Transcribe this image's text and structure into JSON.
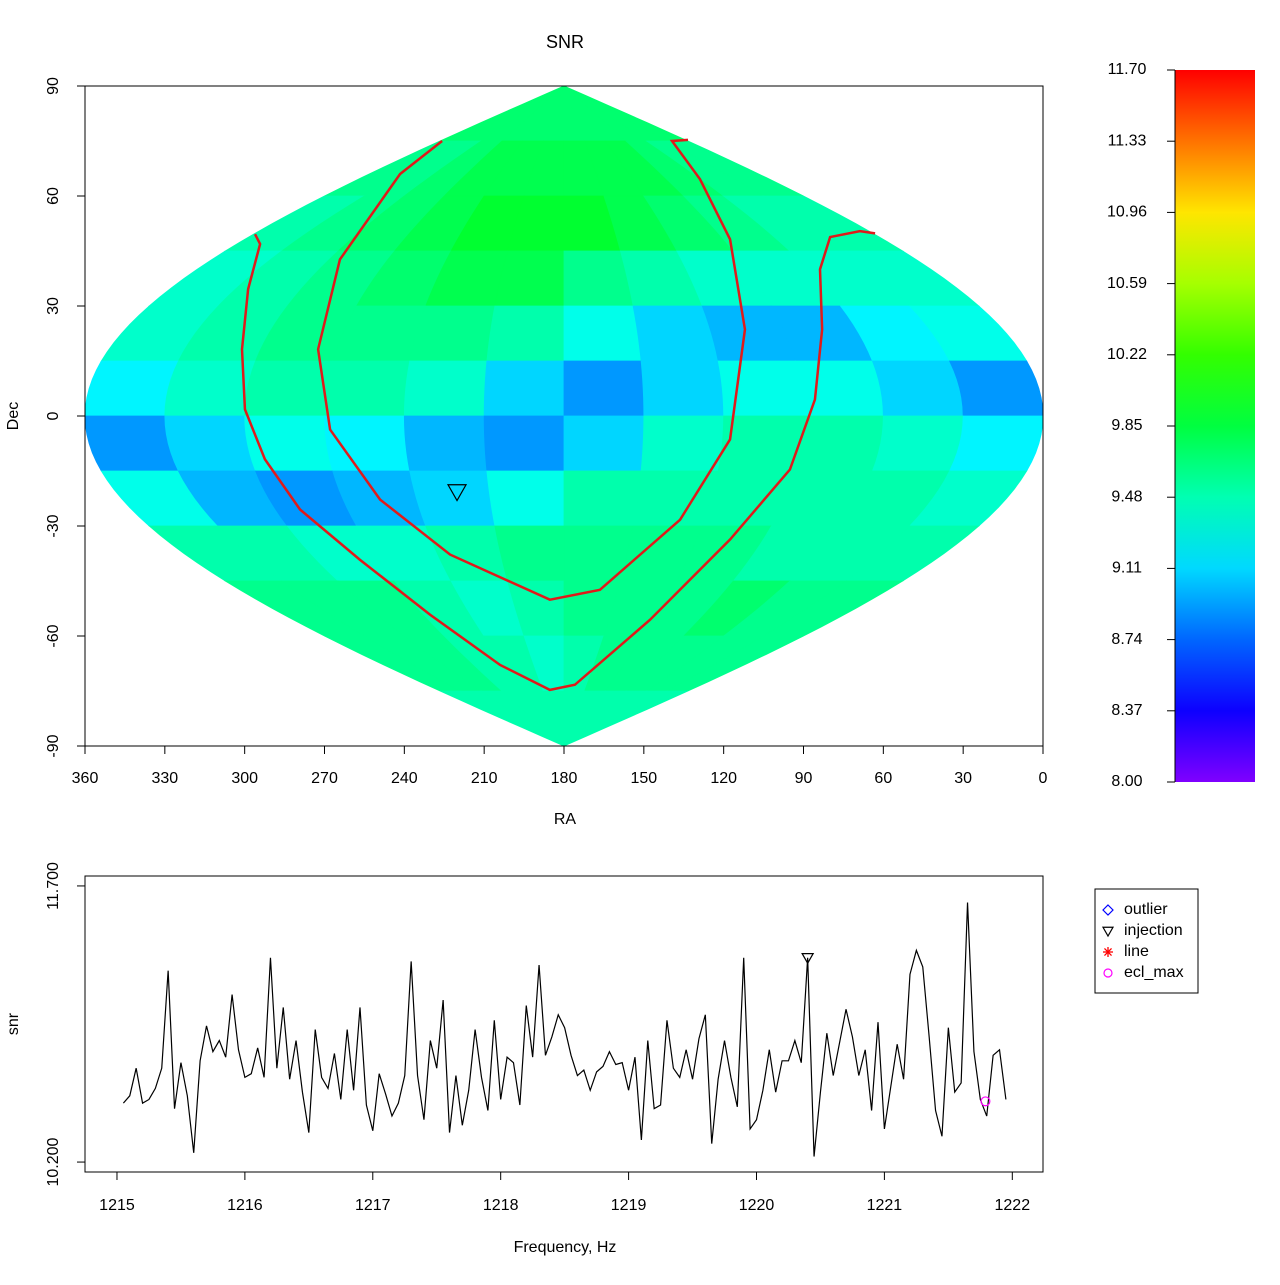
{
  "chart_data": [
    {
      "type": "heatmap",
      "title": "SNR",
      "xlabel": "RA",
      "ylabel": "Dec",
      "xlim": [
        360,
        0
      ],
      "ylim": [
        -90,
        90
      ],
      "xticks": [
        360,
        330,
        300,
        270,
        240,
        210,
        180,
        150,
        120,
        90,
        60,
        30,
        0
      ],
      "yticks": [
        -90,
        -60,
        -30,
        0,
        30,
        60,
        90
      ],
      "ra_edges": [
        360,
        330,
        300,
        270,
        240,
        210,
        180,
        150,
        120,
        90,
        60,
        30,
        0
      ],
      "dec_edges": [
        90,
        75,
        60,
        45,
        30,
        15,
        0,
        -15,
        -30,
        -45,
        -60,
        -75,
        -90
      ],
      "z": [
        [
          9.7,
          9.7,
          9.7,
          9.7,
          9.7,
          9.7,
          9.7,
          9.7,
          9.7,
          9.7,
          9.7,
          9.7
        ],
        [
          9.6,
          9.6,
          9.7,
          9.8,
          9.8,
          9.8,
          9.8,
          9.8,
          9.8,
          9.7,
          9.6,
          9.6
        ],
        [
          9.5,
          9.6,
          9.7,
          9.8,
          9.9,
          9.9,
          9.9,
          9.8,
          9.7,
          9.6,
          9.5,
          9.5
        ],
        [
          9.4,
          9.5,
          9.6,
          9.7,
          9.8,
          9.8,
          9.6,
          9.5,
          9.4,
          9.4,
          9.4,
          9.4
        ],
        [
          9.4,
          9.5,
          9.6,
          9.6,
          9.6,
          9.5,
          9.3,
          9.1,
          9.0,
          9.0,
          9.2,
          9.3
        ],
        [
          9.2,
          9.4,
          9.5,
          9.5,
          9.4,
          9.1,
          8.9,
          9.1,
          9.3,
          9.3,
          9.1,
          8.9
        ],
        [
          8.9,
          9.1,
          9.3,
          9.2,
          9.0,
          8.9,
          9.1,
          9.4,
          9.5,
          9.5,
          9.4,
          9.2
        ],
        [
          9.3,
          9.0,
          8.9,
          9.0,
          9.1,
          9.3,
          9.5,
          9.5,
          9.5,
          9.5,
          9.5,
          9.4
        ],
        [
          9.5,
          9.5,
          9.4,
          9.4,
          9.5,
          9.6,
          9.6,
          9.6,
          9.6,
          9.5,
          9.5,
          9.5
        ],
        [
          9.6,
          9.6,
          9.6,
          9.5,
          9.4,
          9.5,
          9.6,
          9.6,
          9.6,
          9.7,
          9.6,
          9.6
        ],
        [
          9.6,
          9.6,
          9.6,
          9.5,
          9.5,
          9.4,
          9.5,
          9.6,
          9.6,
          9.6,
          9.6,
          9.6
        ],
        [
          9.5,
          9.5,
          9.5,
          9.5,
          9.5,
          9.5,
          9.5,
          9.5,
          9.5,
          9.5,
          9.5,
          9.5
        ]
      ],
      "zlim": [
        8.0,
        11.7
      ],
      "zticks": [
        {
          "value": 8.0,
          "label": "8.00"
        },
        {
          "value": 8.37,
          "label": "8.37"
        },
        {
          "value": 8.74,
          "label": "8.74"
        },
        {
          "value": 9.11,
          "label": "9.11"
        },
        {
          "value": 9.48,
          "label": "9.48"
        },
        {
          "value": 9.85,
          "label": "9.85"
        },
        {
          "value": 10.22,
          "label": "10.22"
        },
        {
          "value": 10.59,
          "label": "10.59"
        },
        {
          "value": 10.96,
          "label": "10.96"
        },
        {
          "value": 11.33,
          "label": "11.33"
        },
        {
          "value": 11.7,
          "label": "11.70"
        }
      ],
      "series": [
        {
          "color": "#e01a1a",
          "x": [
            296.1,
            294.2,
            298.7,
            301.0,
            299.9,
            292.4,
            279.2,
            256.7,
            230.3,
            204.0,
            185.3,
            175.9,
            147.7,
            117.6,
            95.1,
            85.7,
            83.0,
            83.8,
            80.0,
            68.8,
            63.1
          ],
          "values": [
            49.6,
            46.9,
            34.6,
            18.2,
            1.8,
            -11.8,
            -25.5,
            -39.2,
            -54.2,
            -67.9,
            -74.7,
            -73.3,
            -55.6,
            -33.7,
            -14.6,
            4.5,
            23.6,
            40.0,
            48.8,
            50.4,
            49.8
          ]
        },
        {
          "color": "#e01a1a",
          "x": [
            225.8,
            241.6,
            264.2,
            272.4,
            267.9,
            249.1,
            222.8,
            185.3,
            166.5,
            136.4,
            117.6,
            112.0,
            117.6,
            128.9,
            139.4,
            133.4
          ],
          "values": [
            75.0,
            66.0,
            42.7,
            18.2,
            -3.7,
            -22.8,
            -37.8,
            -50.1,
            -47.4,
            -28.3,
            -6.4,
            23.6,
            48.2,
            64.6,
            75.0,
            75.3
          ]
        }
      ],
      "injection": {
        "x": 220.2,
        "y": -20.6,
        "color": "#000000"
      }
    },
    {
      "type": "line",
      "xlabel": "Frequency, Hz",
      "ylabel": "snr",
      "xlim": [
        1214.75,
        1222.24
      ],
      "ylim": [
        10.146,
        11.754
      ],
      "xticks": [
        1215,
        1216,
        1217,
        1218,
        1219,
        1220,
        1221,
        1222
      ],
      "yticks": [
        {
          "value": 10.2,
          "label": "10.200"
        },
        {
          "value": 11.7,
          "label": "11.700"
        }
      ],
      "series": [
        {
          "color": "#000000",
          "x": [
            1215.05,
            1215.1,
            1215.15,
            1215.2,
            1215.25,
            1215.3,
            1215.35,
            1215.4,
            1215.45,
            1215.5,
            1215.55,
            1215.6,
            1215.65,
            1215.7,
            1215.75,
            1215.8,
            1215.85,
            1215.9,
            1215.95,
            1216,
            1216.05,
            1216.1,
            1216.15,
            1216.2,
            1216.25,
            1216.3,
            1216.35,
            1216.4,
            1216.45,
            1216.5,
            1216.55,
            1216.6,
            1216.65,
            1216.7,
            1216.75,
            1216.8,
            1216.85,
            1216.9,
            1216.95,
            1217,
            1217.05,
            1217.1,
            1217.15,
            1217.2,
            1217.25,
            1217.3,
            1217.35,
            1217.4,
            1217.45,
            1217.5,
            1217.55,
            1217.6,
            1217.65,
            1217.7,
            1217.75,
            1217.8,
            1217.85,
            1217.9,
            1217.95,
            1218,
            1218.05,
            1218.1,
            1218.15,
            1218.2,
            1218.25,
            1218.3,
            1218.35,
            1218.4,
            1218.45,
            1218.5,
            1218.55,
            1218.6,
            1218.65,
            1218.7,
            1218.75,
            1218.8,
            1218.85,
            1218.9,
            1218.95,
            1219,
            1219.05,
            1219.1,
            1219.15,
            1219.2,
            1219.25,
            1219.3,
            1219.35,
            1219.4,
            1219.45,
            1219.5,
            1219.55,
            1219.6,
            1219.65,
            1219.7,
            1219.75,
            1219.8,
            1219.85,
            1219.9,
            1219.95,
            1220,
            1220.05,
            1220.1,
            1220.15,
            1220.2,
            1220.25,
            1220.3,
            1220.35,
            1220.4,
            1220.45,
            1220.5,
            1220.55,
            1220.6,
            1220.65,
            1220.7,
            1220.75,
            1220.8,
            1220.85,
            1220.9,
            1220.95,
            1221,
            1221.05,
            1221.1,
            1221.15,
            1221.2,
            1221.25,
            1221.3,
            1221.35,
            1221.4,
            1221.45,
            1221.5,
            1221.55,
            1221.6,
            1221.65,
            1221.7,
            1221.75,
            1221.8,
            1221.85,
            1221.9,
            1221.95
          ],
          "values": [
            10.52,
            10.56,
            10.71,
            10.52,
            10.54,
            10.6,
            10.71,
            11.24,
            10.49,
            10.74,
            10.56,
            10.25,
            10.75,
            10.94,
            10.8,
            10.86,
            10.77,
            11.11,
            10.81,
            10.66,
            10.68,
            10.82,
            10.66,
            11.31,
            10.71,
            11.04,
            10.65,
            10.86,
            10.58,
            10.36,
            10.92,
            10.66,
            10.6,
            10.79,
            10.54,
            10.92,
            10.59,
            11.04,
            10.51,
            10.37,
            10.68,
            10.57,
            10.45,
            10.52,
            10.67,
            11.29,
            10.67,
            10.43,
            10.86,
            10.71,
            11.08,
            10.36,
            10.67,
            10.4,
            10.59,
            10.92,
            10.66,
            10.48,
            10.97,
            10.54,
            10.77,
            10.74,
            10.51,
            11.05,
            10.77,
            11.27,
            10.78,
            10.88,
            11.0,
            10.93,
            10.78,
            10.67,
            10.7,
            10.59,
            10.69,
            10.72,
            10.8,
            10.73,
            10.74,
            10.59,
            10.77,
            10.32,
            10.86,
            10.49,
            10.51,
            10.97,
            10.71,
            10.66,
            10.81,
            10.65,
            10.87,
            11.0,
            10.3,
            10.65,
            10.86,
            10.66,
            10.5,
            11.31,
            10.38,
            10.43,
            10.59,
            10.81,
            10.58,
            10.75,
            10.75,
            10.86,
            10.74,
            11.31,
            10.23,
            10.58,
            10.9,
            10.67,
            10.85,
            11.03,
            10.88,
            10.67,
            10.81,
            10.48,
            10.96,
            10.38,
            10.61,
            10.84,
            10.65,
            11.22,
            11.35,
            11.26,
            10.88,
            10.48,
            10.34,
            10.93,
            10.58,
            10.63,
            11.61,
            10.8,
            10.54,
            10.45,
            10.78,
            10.81,
            10.54
          ]
        }
      ],
      "legend": {
        "position": "outside-right",
        "entries": [
          {
            "name": "outlier",
            "color": "#0000ff",
            "symbol": "diamond"
          },
          {
            "name": "injection",
            "color": "#000000",
            "symbol": "triangle-down",
            "x": [
              1220.4
            ],
            "y": [
              11.31
            ]
          },
          {
            "name": "line",
            "color": "#ff0000",
            "symbol": "asterisk"
          },
          {
            "name": "ecl_max",
            "color": "#ff00ff",
            "symbol": "circle",
            "x": [
              1221.79
            ],
            "y": [
              10.53
            ]
          }
        ]
      }
    }
  ]
}
